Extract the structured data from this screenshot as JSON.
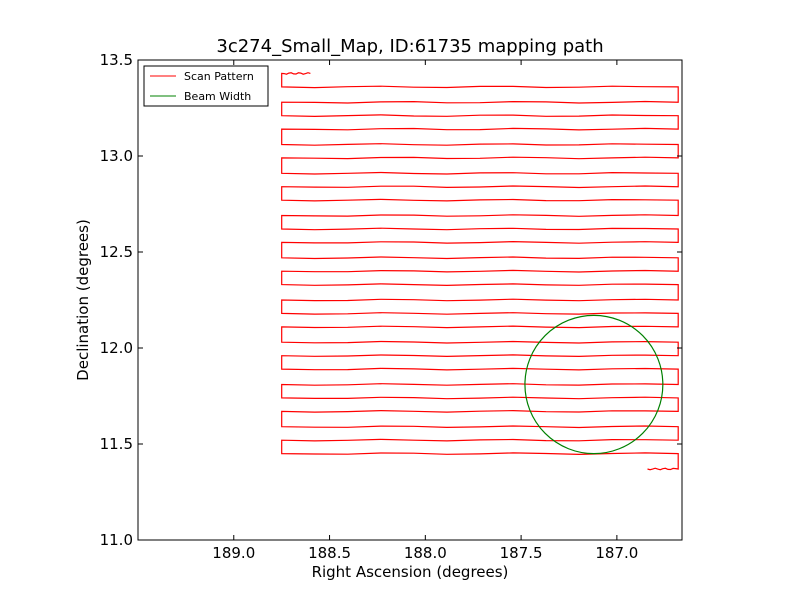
{
  "chart_data": {
    "type": "line",
    "title": "3c274_Small_Map, ID:61735 mapping path",
    "xlabel": "Right Ascension (degrees)",
    "ylabel": "Declination (degrees)",
    "xlim": [
      189.5,
      186.66
    ],
    "ylim": [
      11.0,
      13.5
    ],
    "x_reversed": true,
    "xticks": [
      189.0,
      188.5,
      188.0,
      187.5,
      187.0
    ],
    "xtick_labels": [
      "189.0",
      "188.5",
      "188.0",
      "187.5",
      "187.0"
    ],
    "yticks": [
      11.0,
      11.5,
      12.0,
      12.5,
      13.0,
      13.5
    ],
    "ytick_labels": [
      "11.0",
      "11.5",
      "12.0",
      "12.5",
      "13.0",
      "13.5"
    ],
    "grid": false,
    "legend_position": "upper-left",
    "legend": [
      "Scan Pattern",
      "Beam Width"
    ],
    "series": [
      {
        "name": "Scan Pattern",
        "color": "#ff0000",
        "pass_declinations": [
          13.43,
          13.36,
          13.28,
          13.21,
          13.14,
          13.06,
          12.99,
          12.91,
          12.84,
          12.77,
          12.69,
          12.62,
          12.55,
          12.47,
          12.4,
          12.33,
          12.25,
          12.18,
          12.11,
          12.03,
          11.96,
          11.89,
          11.81,
          11.74,
          11.67,
          11.59,
          11.52,
          11.45,
          11.37
        ],
        "ra_start": 188.6,
        "ra_east_turn": 188.75,
        "ra_west_turn": 186.68,
        "ra_end": 186.84
      },
      {
        "name": "Beam Width",
        "color": "#008000",
        "center_ra": 187.12,
        "center_dec": 11.81,
        "radius_deg": 0.36
      }
    ]
  }
}
